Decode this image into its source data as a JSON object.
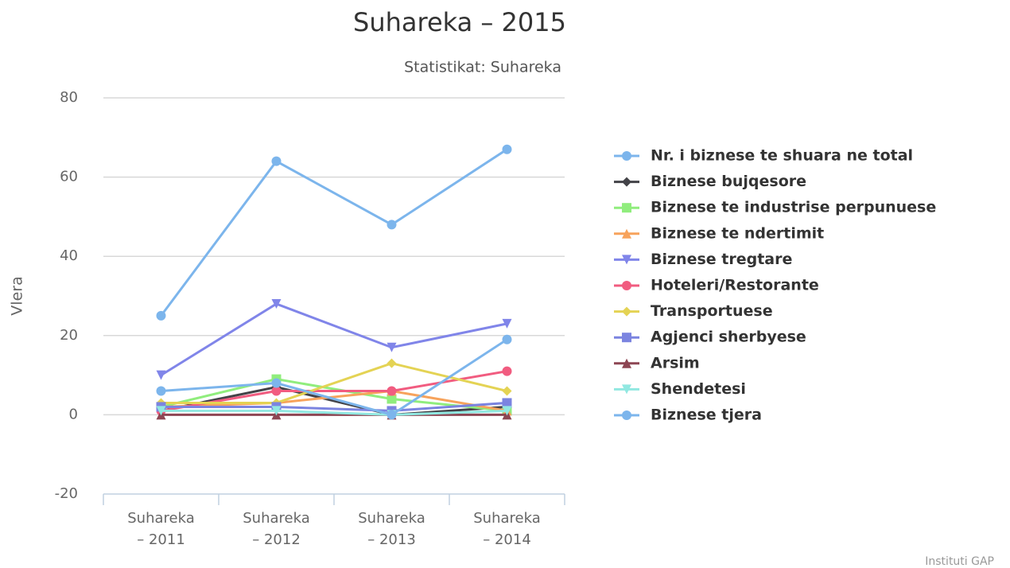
{
  "chart_data": {
    "type": "line",
    "title": "Suhareka – 2015",
    "subtitle": "Statistikat: Suhareka",
    "y_label": "Vlera",
    "credits": "Instituti GAP",
    "categories": [
      "Suhareka – 2011",
      "Suhareka – 2012",
      "Suhareka – 2013",
      "Suhareka – 2014"
    ],
    "ylim": [
      -20,
      80
    ],
    "yticks": [
      -20,
      0,
      20,
      40,
      60,
      80
    ],
    "grid": true,
    "legend": "right",
    "series": [
      {
        "name": "Nr. i biznese te shuara ne total",
        "color": "#7cb5ec",
        "marker": "circle",
        "values": [
          25,
          64,
          48,
          67
        ]
      },
      {
        "name": "Biznese bujqesore",
        "color": "#434348",
        "marker": "diamond",
        "values": [
          1,
          7,
          0,
          2
        ]
      },
      {
        "name": "Biznese te industrise perpunuese",
        "color": "#90ed7d",
        "marker": "square",
        "values": [
          2,
          9,
          4,
          1
        ]
      },
      {
        "name": "Biznese te ndertimit",
        "color": "#f7a35c",
        "marker": "triangle",
        "values": [
          2,
          3,
          6,
          1
        ]
      },
      {
        "name": "Biznese tregtare",
        "color": "#8085e9",
        "marker": "triangle-down",
        "values": [
          10,
          28,
          17,
          23
        ]
      },
      {
        "name": "Hoteleri/Restorante",
        "color": "#f15c80",
        "marker": "circle",
        "values": [
          1,
          6,
          6,
          11
        ]
      },
      {
        "name": "Transportuese",
        "color": "#e4d354",
        "marker": "diamond",
        "values": [
          3,
          3,
          13,
          6
        ]
      },
      {
        "name": "Agjenci sherbyese",
        "color": "#7b84e0",
        "marker": "square",
        "values": [
          2,
          2,
          1,
          3
        ]
      },
      {
        "name": "Arsim",
        "color": "#8d4653",
        "marker": "triangle",
        "values": [
          0,
          0,
          0,
          0
        ]
      },
      {
        "name": "Shendetesi",
        "color": "#91e8e1",
        "marker": "triangle-down",
        "values": [
          1,
          1,
          0,
          1
        ]
      },
      {
        "name": "Biznese tjera",
        "color": "#7cb5ec",
        "marker": "circle",
        "values": [
          6,
          8,
          0,
          19
        ]
      }
    ]
  }
}
